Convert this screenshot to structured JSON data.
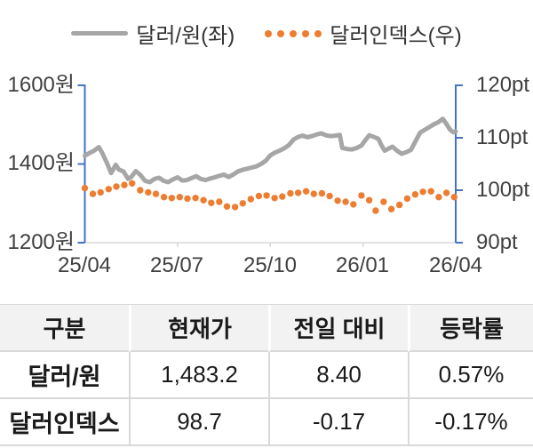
{
  "chart_data": {
    "type": "line",
    "legend_position": "top",
    "x_axis": {
      "labels": [
        "25/04",
        "25/07",
        "25/10",
        "26/01",
        "26/04"
      ],
      "label_positions_months": [
        0,
        3,
        6,
        9,
        12
      ],
      "minor_tick_months": [
        3,
        6,
        9
      ],
      "range_months": [
        0,
        12
      ]
    },
    "y_left": {
      "ticks": [
        "1600원",
        "1400원",
        "1200원"
      ],
      "min": 1200,
      "max": 1600,
      "unit": "원"
    },
    "y_right": {
      "ticks": [
        "120pt",
        "110pt",
        "100pt",
        "90pt"
      ],
      "min": 90,
      "max": 120,
      "unit": "pt"
    },
    "colors": {
      "axis": "#4472C4",
      "gridline": "#D9D9D9",
      "tick_text": "#404040"
    },
    "series": [
      {
        "name": "달러/원(좌)",
        "axis": "left",
        "style": "line",
        "color": "#A6A6A6",
        "x": [
          0,
          0.15,
          0.3,
          0.45,
          0.55,
          0.7,
          0.85,
          1,
          1.1,
          1.25,
          1.4,
          1.5,
          1.65,
          1.8,
          1.95,
          2.1,
          2.25,
          2.4,
          2.55,
          2.7,
          2.85,
          3,
          3.15,
          3.3,
          3.45,
          3.6,
          3.75,
          3.9,
          4.05,
          4.2,
          4.35,
          4.5,
          4.65,
          4.8,
          4.95,
          5.1,
          5.25,
          5.4,
          5.55,
          5.7,
          5.85,
          6,
          6.15,
          6.3,
          6.45,
          6.6,
          6.75,
          6.9,
          7.05,
          7.2,
          7.35,
          7.5,
          7.65,
          7.8,
          7.95,
          8.1,
          8.25,
          8.33,
          8.5,
          8.65,
          8.8,
          8.95,
          9.05,
          9.2,
          9.35,
          9.5,
          9.6,
          9.7,
          9.85,
          9.95,
          10.1,
          10.25,
          10.4,
          10.55,
          10.7,
          10.85,
          11,
          11.15,
          11.3,
          11.45,
          11.58,
          11.7,
          11.82,
          11.92,
          12
        ],
        "values": [
          1421,
          1428,
          1434,
          1443,
          1430,
          1405,
          1377,
          1398,
          1386,
          1381,
          1362,
          1367,
          1382,
          1372,
          1357,
          1354,
          1362,
          1365,
          1357,
          1354,
          1361,
          1366,
          1358,
          1359,
          1364,
          1369,
          1362,
          1359,
          1363,
          1366,
          1370,
          1373,
          1367,
          1373,
          1381,
          1385,
          1388,
          1391,
          1394,
          1400,
          1408,
          1422,
          1429,
          1434,
          1440,
          1448,
          1462,
          1469,
          1472,
          1468,
          1471,
          1475,
          1478,
          1473,
          1471,
          1472,
          1474,
          1441,
          1438,
          1437,
          1441,
          1447,
          1458,
          1473,
          1469,
          1464,
          1447,
          1434,
          1440,
          1444,
          1434,
          1426,
          1430,
          1436,
          1458,
          1480,
          1487,
          1494,
          1501,
          1507,
          1515,
          1502,
          1487,
          1481,
          1483
        ]
      },
      {
        "name": "달러인덱스(우)",
        "axis": "right",
        "style": "dots",
        "color": "#ED7D31",
        "x": [
          0,
          0.26,
          0.51,
          0.77,
          1.02,
          1.28,
          1.53,
          1.79,
          2.05,
          2.3,
          2.56,
          2.81,
          3.07,
          3.32,
          3.58,
          3.84,
          4.09,
          4.35,
          4.6,
          4.86,
          5.11,
          5.37,
          5.63,
          5.88,
          6.14,
          6.39,
          6.65,
          6.9,
          7.16,
          7.41,
          7.67,
          7.92,
          8.18,
          8.44,
          8.69,
          8.95,
          9.2,
          9.41,
          9.67,
          9.92,
          10.18,
          10.43,
          10.69,
          10.94,
          11.2,
          11.45,
          11.7,
          11.95
        ],
        "values": [
          100.4,
          99.3,
          99.6,
          100.2,
          100.7,
          101.0,
          101.3,
          100.0,
          99.6,
          99.3,
          98.7,
          98.5,
          98.7,
          98.4,
          98.5,
          98.1,
          97.6,
          97.8,
          96.9,
          96.8,
          97.5,
          98.3,
          98.9,
          99.0,
          98.5,
          98.8,
          99.4,
          99.5,
          99.8,
          99.3,
          99.4,
          98.9,
          98.0,
          97.8,
          97.3,
          99.0,
          98.1,
          96.1,
          97.8,
          96.4,
          97.2,
          98.4,
          99.2,
          99.7,
          99.8,
          98.7,
          99.5,
          98.7
        ]
      }
    ]
  },
  "table": {
    "headers": [
      "구분",
      "현재가",
      "전일 대비",
      "등락률"
    ],
    "rows": [
      [
        "달러/원",
        "1,483.2",
        "8.40",
        "0.57%"
      ],
      [
        "달러인덱스",
        "98.7",
        "-0.17",
        "-0.17%"
      ]
    ],
    "header_bg": "#F2F2F2",
    "border_color": "#D9D9D9"
  }
}
